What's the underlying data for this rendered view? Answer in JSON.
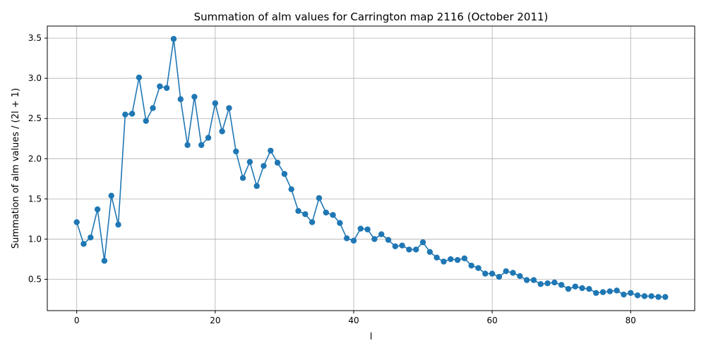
{
  "chart_data": {
    "type": "line",
    "title": "Summation of alm values for Carrington map 2116 (October 2011)",
    "xlabel": "l",
    "ylabel": "Summation of alm values / (2l + 1)",
    "xlim": [
      -4.25,
      89.25
    ],
    "ylim": [
      0.11,
      3.65
    ],
    "xticks": [
      0,
      20,
      40,
      60,
      80
    ],
    "yticks": [
      0.5,
      1.0,
      1.5,
      2.0,
      2.5,
      3.0,
      3.5
    ],
    "grid": true,
    "series": [
      {
        "color": "#1f77b4",
        "marker": "circle",
        "x": [
          0,
          1,
          2,
          3,
          4,
          5,
          6,
          7,
          8,
          9,
          10,
          11,
          12,
          13,
          14,
          15,
          16,
          17,
          18,
          19,
          20,
          21,
          22,
          23,
          24,
          25,
          26,
          27,
          28,
          29,
          30,
          31,
          32,
          33,
          34,
          35,
          36,
          37,
          38,
          39,
          40,
          41,
          42,
          43,
          44,
          45,
          46,
          47,
          48,
          49,
          50,
          51,
          52,
          53,
          54,
          55,
          56,
          57,
          58,
          59,
          60,
          61,
          62,
          63,
          64,
          65,
          66,
          67,
          68,
          69,
          70,
          71,
          72,
          73,
          74,
          75,
          76,
          77,
          78,
          79,
          80,
          81,
          82,
          83,
          84,
          85
        ],
        "values": [
          1.21,
          0.94,
          1.02,
          1.37,
          0.73,
          1.54,
          1.18,
          2.55,
          2.56,
          3.01,
          2.47,
          2.63,
          2.9,
          2.88,
          3.49,
          2.74,
          2.17,
          2.77,
          2.17,
          2.26,
          2.69,
          2.34,
          2.63,
          2.09,
          1.76,
          1.96,
          1.66,
          1.91,
          2.1,
          1.95,
          1.81,
          1.62,
          1.35,
          1.31,
          1.21,
          1.51,
          1.33,
          1.3,
          1.2,
          1.01,
          0.98,
          1.13,
          1.12,
          1.0,
          1.06,
          0.99,
          0.91,
          0.92,
          0.87,
          0.87,
          0.96,
          0.84,
          0.77,
          0.72,
          0.75,
          0.74,
          0.76,
          0.67,
          0.64,
          0.57,
          0.57,
          0.53,
          0.6,
          0.58,
          0.54,
          0.49,
          0.49,
          0.44,
          0.45,
          0.46,
          0.43,
          0.38,
          0.41,
          0.39,
          0.38,
          0.33,
          0.34,
          0.35,
          0.36,
          0.31,
          0.33,
          0.3,
          0.29,
          0.29,
          0.28,
          0.28
        ]
      }
    ]
  }
}
